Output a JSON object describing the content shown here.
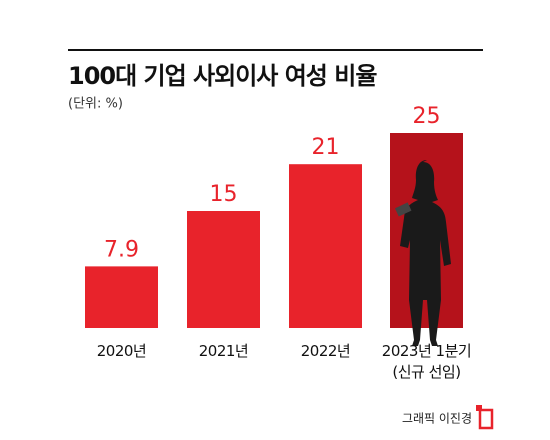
{
  "chart_data": {
    "type": "bar",
    "title": "100대 기업 사외이사 여성 비율",
    "subtitle": "(단위: %)",
    "categories": [
      "2020년",
      "2021년",
      "2022년",
      "2023년 1분기\n(신규 선임)"
    ],
    "values": [
      7.9,
      15,
      21,
      25
    ],
    "colors": [
      "#e8232b",
      "#e8232b",
      "#e8232b",
      "#b5121b"
    ],
    "ylim": [
      0,
      25
    ],
    "credit": "그래픽 이진경"
  }
}
